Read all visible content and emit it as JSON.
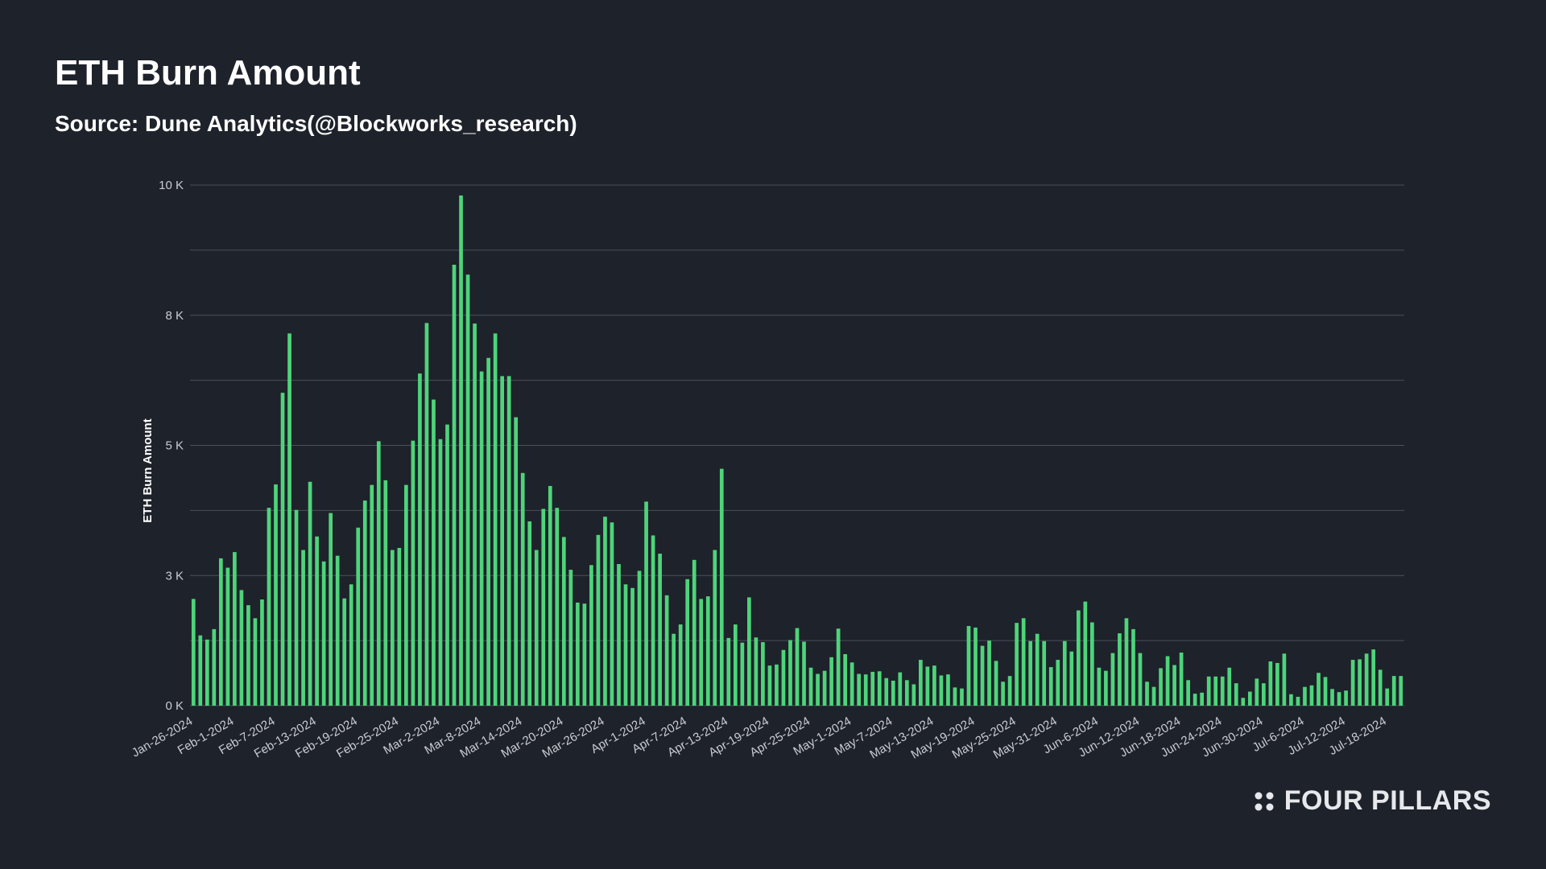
{
  "title": "ETH Burn Amount",
  "subtitle": "Source: Dune Analytics(@Blockworks_research)",
  "brand": "FOUR PILLARS",
  "colors": {
    "background": "#1e222b",
    "bar": "#4ed47a",
    "grid": "#4a4f59",
    "text": "#ffffff",
    "tick_text": "#c9ccd2"
  },
  "chart_data": {
    "type": "bar",
    "title": "ETH Burn Amount",
    "ylabel": "ETH Burn Amount",
    "xlabel": "",
    "ylim": [
      0,
      10000
    ],
    "ytick_values": [
      0,
      2500,
      5000,
      7500,
      10000
    ],
    "ytick_labels": [
      "0 K",
      "3 K",
      "5 K",
      "8 K",
      "10 K"
    ],
    "grid": true,
    "legend": "none",
    "xtick_labels": [
      "Jan-26-2024",
      "Feb-1-2024",
      "Feb-7-2024",
      "Feb-13-2024",
      "Feb-19-2024",
      "Feb-25-2024",
      "Mar-2-2024",
      "Mar-8-2024",
      "Mar-14-2024",
      "Mar-20-2024",
      "Mar-26-2024",
      "Apr-1-2024",
      "Apr-7-2024",
      "Apr-13-2024",
      "Apr-19-2024",
      "Apr-25-2024",
      "May-1-2024",
      "May-7-2024",
      "May-13-2024",
      "May-19-2024",
      "May-25-2024",
      "May-31-2024",
      "Jun-6-2024",
      "Jun-12-2024",
      "Jun-18-2024",
      "Jun-24-2024",
      "Jun-30-2024",
      "Jul-6-2024",
      "Jul-12-2024",
      "Jul-18-2024"
    ],
    "xtick_every": 6,
    "series": [
      {
        "values": [
          2050,
          1350,
          1270,
          1470,
          2830,
          2650,
          2950,
          2220,
          1930,
          1680,
          2040,
          3800,
          4250,
          6010,
          7150,
          3760,
          2990,
          4300,
          3250,
          2770,
          3700,
          2880,
          2060,
          2330,
          3420,
          3940,
          4240,
          5080,
          4330,
          2990,
          3030,
          4240,
          5090,
          6380,
          7350,
          5880,
          5120,
          5400,
          8470,
          9800,
          8280,
          7340,
          6420,
          6680,
          7150,
          6330,
          6330,
          5540,
          4470,
          3540,
          2990,
          3780,
          4220,
          3800,
          3240,
          2610,
          1980,
          1960,
          2700,
          3280,
          3630,
          3520,
          2720,
          2330,
          2260,
          2590,
          3920,
          3270,
          2920,
          2120,
          1380,
          1560,
          2430,
          2800,
          2050,
          2100,
          2990,
          4550,
          1300,
          1560,
          1210,
          2080,
          1310,
          1220,
          770,
          790,
          1070,
          1260,
          1490,
          1230,
          730,
          610,
          670,
          930,
          1480,
          990,
          830,
          610,
          600,
          650,
          660,
          530,
          480,
          640,
          490,
          410,
          880,
          750,
          770,
          580,
          600,
          350,
          330,
          1530,
          1500,
          1150,
          1250,
          860,
          460,
          570,
          1590,
          1680,
          1240,
          1380,
          1240,
          740,
          880,
          1240,
          1040,
          1830,
          2000,
          1600,
          730,
          670,
          1010,
          1390,
          1680,
          1470,
          1010,
          460,
          360,
          720,
          950,
          780,
          1020,
          490,
          230,
          250,
          560,
          560,
          560,
          730,
          430,
          150,
          270,
          520,
          430,
          850,
          820,
          1000,
          220,
          170,
          360,
          390,
          630,
          550,
          320,
          260,
          290,
          880,
          890,
          1000,
          1080,
          690,
          330,
          570,
          570
        ]
      }
    ]
  }
}
